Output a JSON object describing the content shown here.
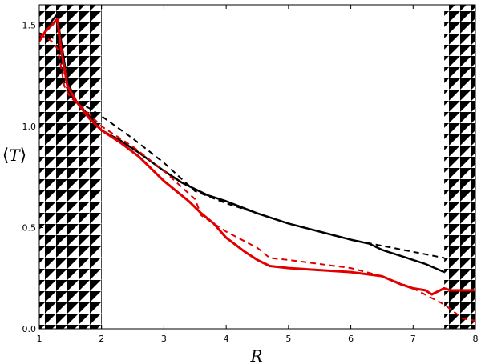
{
  "chart_data": {
    "type": "line",
    "xlabel": "R",
    "ylabel": {
      "open": "⟨",
      "symbol": "T",
      "close": "⟩"
    },
    "xlim": [
      1,
      8
    ],
    "ylim": [
      0,
      1.6
    ],
    "xticks": [
      1,
      2,
      3,
      4,
      5,
      6,
      7,
      8
    ],
    "yticks": [
      0.0,
      0.5,
      1.0,
      1.5
    ],
    "ytick_labels": [
      "0.0",
      "0.5",
      "1.0",
      "1.5"
    ],
    "grid": false,
    "hatched_regions": [
      [
        1,
        2
      ],
      [
        7.5,
        8
      ]
    ],
    "series": [
      {
        "color": "#000000",
        "style": "solid",
        "width": 2.5,
        "x": [
          1.0,
          1.1,
          1.2,
          1.28,
          1.35,
          1.45,
          1.6,
          1.8,
          2.0,
          2.3,
          2.6,
          3.0,
          3.3,
          3.7,
          4.0,
          4.5,
          5.0,
          5.5,
          6.0,
          6.3,
          6.5,
          7.0,
          7.2,
          7.5
        ],
        "y": [
          1.42,
          1.47,
          1.52,
          1.55,
          1.42,
          1.22,
          1.12,
          1.05,
          0.98,
          0.93,
          0.87,
          0.78,
          0.72,
          0.66,
          0.63,
          0.57,
          0.52,
          0.48,
          0.44,
          0.42,
          0.39,
          0.34,
          0.32,
          0.28
        ]
      },
      {
        "color": "#000000",
        "style": "dashed",
        "width": 2,
        "x": [
          1.0,
          1.1,
          1.2,
          1.3,
          1.4,
          1.5,
          1.6,
          1.8,
          2.0,
          2.5,
          3.0,
          3.5,
          4.0,
          4.5,
          5.0,
          5.5,
          6.0,
          6.5,
          7.0,
          7.5
        ],
        "y": [
          1.46,
          1.45,
          1.44,
          1.42,
          1.22,
          1.15,
          1.12,
          1.09,
          1.05,
          0.94,
          0.82,
          0.68,
          0.62,
          0.57,
          0.52,
          0.48,
          0.44,
          0.41,
          0.38,
          0.35
        ]
      },
      {
        "color": "#e00000",
        "style": "solid",
        "width": 3,
        "x": [
          1.0,
          1.1,
          1.2,
          1.29,
          1.35,
          1.45,
          1.6,
          1.8,
          2.0,
          2.3,
          2.6,
          3.0,
          3.4,
          3.6,
          3.8,
          4.0,
          4.3,
          4.5,
          4.7,
          5.0,
          5.5,
          6.0,
          6.5,
          6.8,
          7.0,
          7.2,
          7.3,
          7.5,
          7.6,
          8.0
        ],
        "y": [
          1.42,
          1.47,
          1.5,
          1.53,
          1.38,
          1.2,
          1.12,
          1.04,
          0.98,
          0.92,
          0.85,
          0.73,
          0.63,
          0.57,
          0.52,
          0.45,
          0.38,
          0.34,
          0.31,
          0.3,
          0.29,
          0.28,
          0.26,
          0.22,
          0.2,
          0.19,
          0.17,
          0.2,
          0.19,
          0.19
        ]
      },
      {
        "color": "#e00000",
        "style": "dashed",
        "width": 2,
        "x": [
          1.0,
          1.1,
          1.2,
          1.3,
          1.4,
          1.5,
          1.6,
          1.8,
          2.0,
          2.5,
          3.0,
          3.5,
          3.6,
          4.0,
          4.5,
          4.7,
          5.0,
          5.5,
          6.0,
          6.5,
          7.0,
          7.5,
          7.8,
          8.0
        ],
        "y": [
          1.45,
          1.44,
          1.42,
          1.38,
          1.2,
          1.14,
          1.12,
          1.06,
          1.0,
          0.9,
          0.78,
          0.64,
          0.56,
          0.48,
          0.4,
          0.35,
          0.34,
          0.32,
          0.3,
          0.26,
          0.2,
          0.12,
          0.05,
          0.04
        ]
      }
    ]
  }
}
